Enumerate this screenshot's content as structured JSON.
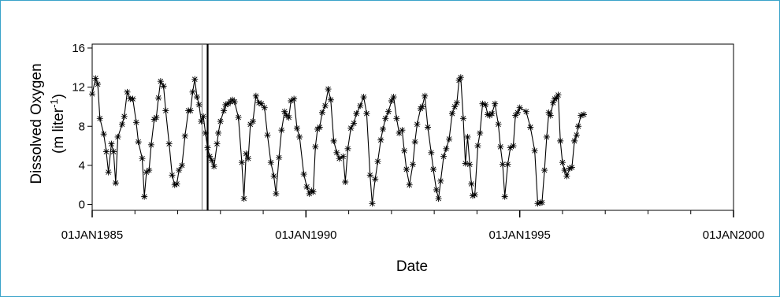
{
  "chart_data": {
    "type": "line",
    "xlabel": "Date",
    "ylabel": {
      "line1": "Dissolved Oxygen",
      "line2_prefix": "(m liter",
      "line2_sup": "-1",
      "line2_suffix": ")"
    },
    "xlim": [
      1985.0,
      2000.0
    ],
    "ylim": [
      -0.6,
      16.4
    ],
    "yticks": [
      0,
      4,
      8,
      12,
      16
    ],
    "xticks": [
      {
        "x": 1985.0,
        "label": "01JAN1985"
      },
      {
        "x": 1990.0,
        "label": "01JAN1990"
      },
      {
        "x": 1995.0,
        "label": "01JAN1995"
      },
      {
        "x": 2000.0,
        "label": "01JAN2000"
      }
    ],
    "grid": false,
    "marker": "asterisk",
    "colors": {
      "line": "#000000",
      "reference_line_thin": "#7a7a7a",
      "reference_line_thick": "#000000",
      "frame": "#3aa3c9"
    },
    "reference_lines": [
      {
        "x": 1987.57,
        "style": "thin"
      },
      {
        "x": 1987.7,
        "style": "thick"
      }
    ],
    "series": [
      {
        "points": [
          [
            1985.0,
            11.3
          ],
          [
            1985.08,
            12.9
          ],
          [
            1985.13,
            12.3
          ],
          [
            1985.18,
            8.8
          ],
          [
            1985.27,
            7.2
          ],
          [
            1985.33,
            5.4
          ],
          [
            1985.38,
            3.3
          ],
          [
            1985.45,
            6.2
          ],
          [
            1985.5,
            5.4
          ],
          [
            1985.55,
            2.2
          ],
          [
            1985.6,
            6.9
          ],
          [
            1985.7,
            8.2
          ],
          [
            1985.75,
            9.0
          ],
          [
            1985.82,
            11.5
          ],
          [
            1985.89,
            10.8
          ],
          [
            1985.95,
            10.8
          ],
          [
            1986.03,
            8.4
          ],
          [
            1986.08,
            6.4
          ],
          [
            1986.17,
            4.7
          ],
          [
            1986.22,
            0.8
          ],
          [
            1986.27,
            3.3
          ],
          [
            1986.33,
            3.5
          ],
          [
            1986.38,
            6.1
          ],
          [
            1986.45,
            8.7
          ],
          [
            1986.5,
            8.9
          ],
          [
            1986.55,
            10.9
          ],
          [
            1986.6,
            12.6
          ],
          [
            1986.67,
            12.1
          ],
          [
            1986.72,
            9.6
          ],
          [
            1986.8,
            6.2
          ],
          [
            1986.87,
            3.0
          ],
          [
            1986.93,
            2.0
          ],
          [
            1986.98,
            2.1
          ],
          [
            1987.03,
            3.5
          ],
          [
            1987.1,
            4.0
          ],
          [
            1987.17,
            7.0
          ],
          [
            1987.25,
            9.6
          ],
          [
            1987.3,
            9.6
          ],
          [
            1987.35,
            11.5
          ],
          [
            1987.4,
            12.8
          ],
          [
            1987.45,
            11.0
          ],
          [
            1987.5,
            10.2
          ],
          [
            1987.55,
            8.5
          ],
          [
            1987.6,
            9.0
          ],
          [
            1987.65,
            7.3
          ],
          [
            1987.7,
            5.8
          ],
          [
            1987.75,
            4.9
          ],
          [
            1987.8,
            4.5
          ],
          [
            1987.85,
            3.9
          ],
          [
            1987.92,
            6.2
          ],
          [
            1987.95,
            7.3
          ],
          [
            1988.0,
            8.5
          ],
          [
            1988.08,
            9.6
          ],
          [
            1988.12,
            10.2
          ],
          [
            1988.18,
            10.3
          ],
          [
            1988.23,
            10.5
          ],
          [
            1988.28,
            10.7
          ],
          [
            1988.33,
            10.5
          ],
          [
            1988.42,
            8.9
          ],
          [
            1988.5,
            4.3
          ],
          [
            1988.55,
            0.6
          ],
          [
            1988.6,
            5.2
          ],
          [
            1988.65,
            4.7
          ],
          [
            1988.7,
            8.2
          ],
          [
            1988.76,
            8.5
          ],
          [
            1988.83,
            11.1
          ],
          [
            1988.9,
            10.4
          ],
          [
            1988.96,
            10.3
          ],
          [
            1989.03,
            9.9
          ],
          [
            1989.1,
            7.1
          ],
          [
            1989.18,
            4.3
          ],
          [
            1989.25,
            2.9
          ],
          [
            1989.3,
            1.1
          ],
          [
            1989.37,
            4.8
          ],
          [
            1989.43,
            7.6
          ],
          [
            1989.5,
            9.5
          ],
          [
            1989.55,
            9.1
          ],
          [
            1989.6,
            8.9
          ],
          [
            1989.65,
            10.6
          ],
          [
            1989.72,
            10.8
          ],
          [
            1989.79,
            7.8
          ],
          [
            1989.85,
            6.9
          ],
          [
            1989.95,
            3.1
          ],
          [
            1990.02,
            1.8
          ],
          [
            1990.08,
            1.1
          ],
          [
            1990.13,
            1.4
          ],
          [
            1990.17,
            1.3
          ],
          [
            1990.22,
            5.9
          ],
          [
            1990.27,
            7.7
          ],
          [
            1990.32,
            7.9
          ],
          [
            1990.38,
            9.4
          ],
          [
            1990.45,
            10.1
          ],
          [
            1990.52,
            11.8
          ],
          [
            1990.58,
            10.7
          ],
          [
            1990.65,
            6.5
          ],
          [
            1990.72,
            5.3
          ],
          [
            1990.78,
            4.7
          ],
          [
            1990.87,
            4.9
          ],
          [
            1990.92,
            2.3
          ],
          [
            1990.98,
            5.7
          ],
          [
            1991.05,
            7.8
          ],
          [
            1991.12,
            8.3
          ],
          [
            1991.18,
            9.3
          ],
          [
            1991.27,
            10.1
          ],
          [
            1991.35,
            11.0
          ],
          [
            1991.42,
            9.3
          ],
          [
            1991.5,
            3.0
          ],
          [
            1991.55,
            0.1
          ],
          [
            1991.62,
            2.6
          ],
          [
            1991.68,
            4.4
          ],
          [
            1991.75,
            6.6
          ],
          [
            1991.8,
            7.7
          ],
          [
            1991.86,
            8.8
          ],
          [
            1991.93,
            9.5
          ],
          [
            1992.0,
            10.6
          ],
          [
            1992.05,
            11.0
          ],
          [
            1992.12,
            8.8
          ],
          [
            1992.18,
            7.3
          ],
          [
            1992.25,
            7.6
          ],
          [
            1992.3,
            5.5
          ],
          [
            1992.35,
            3.6
          ],
          [
            1992.42,
            2.0
          ],
          [
            1992.5,
            4.1
          ],
          [
            1992.55,
            6.4
          ],
          [
            1992.6,
            8.2
          ],
          [
            1992.68,
            9.8
          ],
          [
            1992.72,
            10.0
          ],
          [
            1992.78,
            11.1
          ],
          [
            1992.85,
            7.9
          ],
          [
            1992.93,
            5.3
          ],
          [
            1992.98,
            3.6
          ],
          [
            1993.05,
            1.5
          ],
          [
            1993.1,
            0.6
          ],
          [
            1993.15,
            2.4
          ],
          [
            1993.22,
            4.9
          ],
          [
            1993.28,
            5.7
          ],
          [
            1993.35,
            6.7
          ],
          [
            1993.42,
            9.3
          ],
          [
            1993.48,
            10.0
          ],
          [
            1993.53,
            10.4
          ],
          [
            1993.58,
            12.7
          ],
          [
            1993.62,
            13.0
          ],
          [
            1993.68,
            8.8
          ],
          [
            1993.73,
            4.2
          ],
          [
            1993.78,
            6.9
          ],
          [
            1993.83,
            4.1
          ],
          [
            1993.87,
            2.1
          ],
          [
            1993.9,
            0.9
          ],
          [
            1993.95,
            1.0
          ],
          [
            1994.02,
            6.0
          ],
          [
            1994.07,
            7.3
          ],
          [
            1994.13,
            10.3
          ],
          [
            1994.2,
            10.2
          ],
          [
            1994.25,
            9.2
          ],
          [
            1994.3,
            9.1
          ],
          [
            1994.35,
            9.3
          ],
          [
            1994.42,
            10.3
          ],
          [
            1994.5,
            8.2
          ],
          [
            1994.55,
            5.9
          ],
          [
            1994.6,
            4.1
          ],
          [
            1994.65,
            0.8
          ],
          [
            1994.72,
            4.1
          ],
          [
            1994.78,
            5.8
          ],
          [
            1994.85,
            6.0
          ],
          [
            1994.9,
            9.1
          ],
          [
            1994.95,
            9.4
          ],
          [
            1995.0,
            9.9
          ],
          [
            1995.15,
            9.5
          ],
          [
            1995.25,
            7.9
          ],
          [
            1995.35,
            5.5
          ],
          [
            1995.42,
            0.1
          ],
          [
            1995.48,
            0.2
          ],
          [
            1995.52,
            0.2
          ],
          [
            1995.58,
            3.5
          ],
          [
            1995.63,
            6.9
          ],
          [
            1995.68,
            9.4
          ],
          [
            1995.72,
            9.1
          ],
          [
            1995.78,
            10.4
          ],
          [
            1995.82,
            10.8
          ],
          [
            1995.86,
            10.9
          ],
          [
            1995.9,
            11.2
          ],
          [
            1995.95,
            6.5
          ],
          [
            1996.0,
            4.3
          ],
          [
            1996.05,
            3.5
          ],
          [
            1996.1,
            2.9
          ],
          [
            1996.17,
            3.7
          ],
          [
            1996.22,
            3.8
          ],
          [
            1996.28,
            6.5
          ],
          [
            1996.33,
            7.1
          ],
          [
            1996.37,
            8.0
          ],
          [
            1996.43,
            9.1
          ],
          [
            1996.5,
            9.2
          ]
        ]
      }
    ]
  }
}
